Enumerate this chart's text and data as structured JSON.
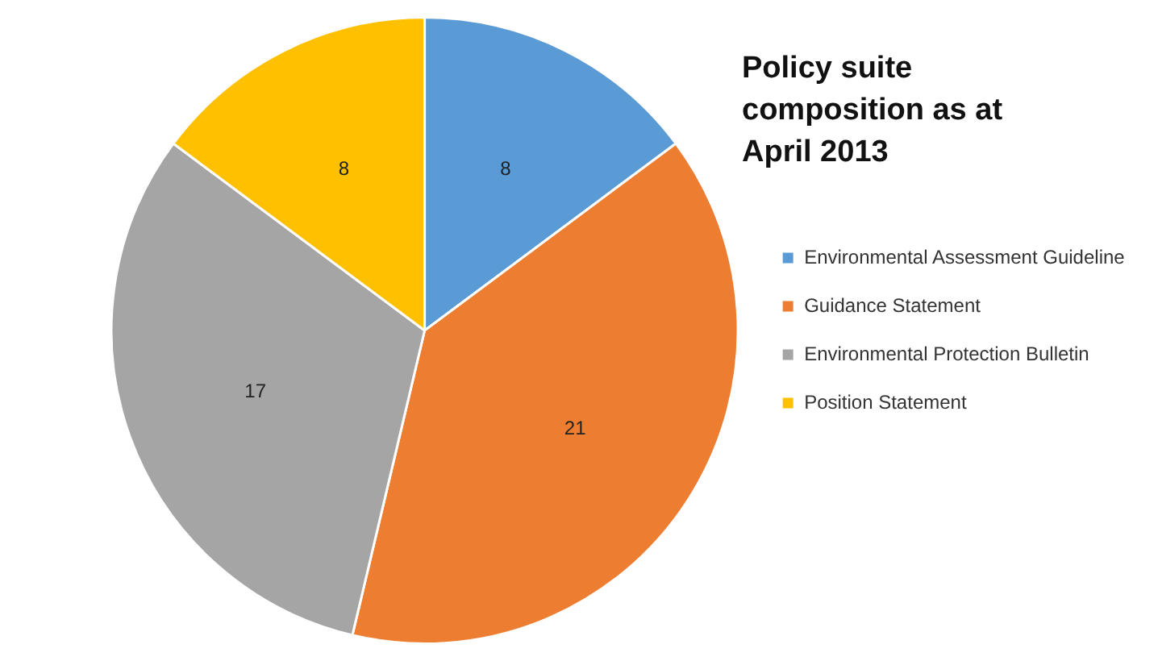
{
  "chart_data": {
    "type": "pie",
    "title": "Policy suite composition as at April 2013",
    "categories": [
      "Environmental Assessment Guideline",
      "Guidance Statement",
      "Environmental Protection Bulletin",
      "Position Statement"
    ],
    "values": [
      8,
      21,
      17,
      8
    ],
    "colors": [
      "#5b9bd5",
      "#ed7d31",
      "#a5a5a5",
      "#ffc000"
    ],
    "data_labels": true,
    "legend": "right"
  }
}
